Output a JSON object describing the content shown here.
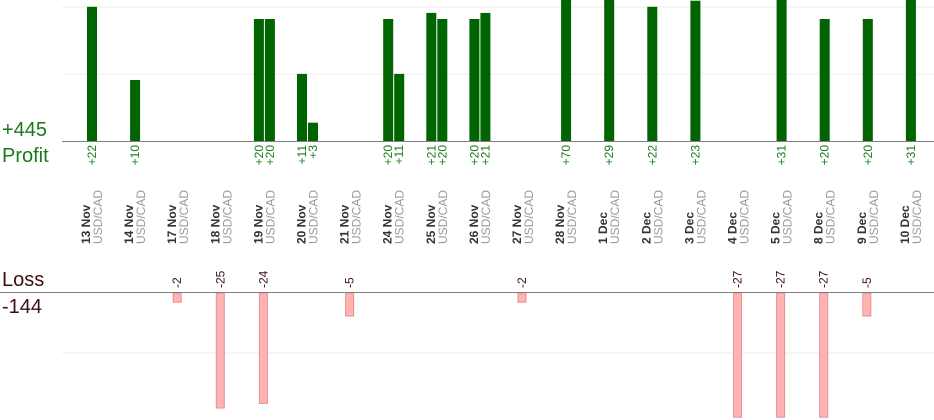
{
  "summary": {
    "profit_total": "+445",
    "profit_label": "Profit",
    "loss_label": "Loss",
    "loss_total": "-144"
  },
  "colors": {
    "profit_bar": "#006400",
    "profit_text": "#1a7a1a",
    "loss_bar": "#ffb3b3",
    "loss_bar_edge": "#e88f8f",
    "loss_text": "#3a1010",
    "axis": "#808080",
    "grid": "#ececec",
    "date_text": "#333333",
    "pair_text": "#999999"
  },
  "chart_data": {
    "type": "bar",
    "profit_scale_ylim": [
      0,
      22
    ],
    "loss_scale_ylim": [
      0,
      25
    ],
    "grid": true,
    "dates": [
      {
        "date": "13 Nov",
        "pair": "USD/CAD"
      },
      {
        "date": "14 Nov",
        "pair": "USD/CAD"
      },
      {
        "date": "17 Nov",
        "pair": "USD/CAD"
      },
      {
        "date": "18 Nov",
        "pair": "USD/CAD"
      },
      {
        "date": "19 Nov",
        "pair": "USD/CAD"
      },
      {
        "date": "20 Nov",
        "pair": "USD/CAD"
      },
      {
        "date": "21 Nov",
        "pair": "USD/CAD"
      },
      {
        "date": "24 Nov",
        "pair": "USD/CAD"
      },
      {
        "date": "25 Nov",
        "pair": "USD/CAD"
      },
      {
        "date": "26 Nov",
        "pair": "USD/CAD"
      },
      {
        "date": "27 Nov",
        "pair": "USD/CAD"
      },
      {
        "date": "28 Nov",
        "pair": "USD/CAD"
      },
      {
        "date": "1 Dec",
        "pair": "USD/CAD"
      },
      {
        "date": "2 Dec",
        "pair": "USD/CAD"
      },
      {
        "date": "3 Dec",
        "pair": "USD/CAD"
      },
      {
        "date": "4 Dec",
        "pair": "USD/CAD"
      },
      {
        "date": "5 Dec",
        "pair": "USD/CAD"
      },
      {
        "date": "8 Dec",
        "pair": "USD/CAD"
      },
      {
        "date": "9 Dec",
        "pair": "USD/CAD"
      },
      {
        "date": "10 Dec",
        "pair": "USD/CAD"
      }
    ],
    "profits": [
      {
        "date": "13 Nov",
        "value": 22,
        "label": "+22"
      },
      {
        "date": "14 Nov",
        "value": 10,
        "label": "+10"
      },
      {
        "date": "19 Nov",
        "value": 20,
        "label": "+20"
      },
      {
        "date": "19 Nov",
        "value": 20,
        "label": "+20"
      },
      {
        "date": "20 Nov",
        "value": 11,
        "label": "+11"
      },
      {
        "date": "20 Nov",
        "value": 3,
        "label": "+3"
      },
      {
        "date": "24 Nov",
        "value": 20,
        "label": "+20"
      },
      {
        "date": "24 Nov",
        "value": 11,
        "label": "+11"
      },
      {
        "date": "25 Nov",
        "value": 21,
        "label": "+21"
      },
      {
        "date": "25 Nov",
        "value": 20,
        "label": "+20"
      },
      {
        "date": "26 Nov",
        "value": 20,
        "label": "+20"
      },
      {
        "date": "26 Nov",
        "value": 21,
        "label": "+21"
      },
      {
        "date": "28 Nov",
        "value": 70,
        "label": "+70"
      },
      {
        "date": "1 Dec",
        "value": 29,
        "label": "+29"
      },
      {
        "date": "2 Dec",
        "value": 22,
        "label": "+22"
      },
      {
        "date": "3 Dec",
        "value": 23,
        "label": "+23"
      },
      {
        "date": "5 Dec",
        "value": 31,
        "label": "+31"
      },
      {
        "date": "8 Dec",
        "value": 20,
        "label": "+20"
      },
      {
        "date": "9 Dec",
        "value": 20,
        "label": "+20"
      },
      {
        "date": "10 Dec",
        "value": 31,
        "label": "+31"
      }
    ],
    "losses": [
      {
        "date": "17 Nov",
        "value": -2,
        "label": "-2"
      },
      {
        "date": "18 Nov",
        "value": -25,
        "label": "-25"
      },
      {
        "date": "19 Nov",
        "value": -24,
        "label": "-24"
      },
      {
        "date": "21 Nov",
        "value": -5,
        "label": "-5"
      },
      {
        "date": "27 Nov",
        "value": -2,
        "label": "-2"
      },
      {
        "date": "4 Dec",
        "value": -27,
        "label": "-27"
      },
      {
        "date": "5 Dec",
        "value": -27,
        "label": "-27"
      },
      {
        "date": "8 Dec",
        "value": -27,
        "label": "-27"
      },
      {
        "date": "9 Dec",
        "value": -5,
        "label": "-5"
      }
    ]
  }
}
